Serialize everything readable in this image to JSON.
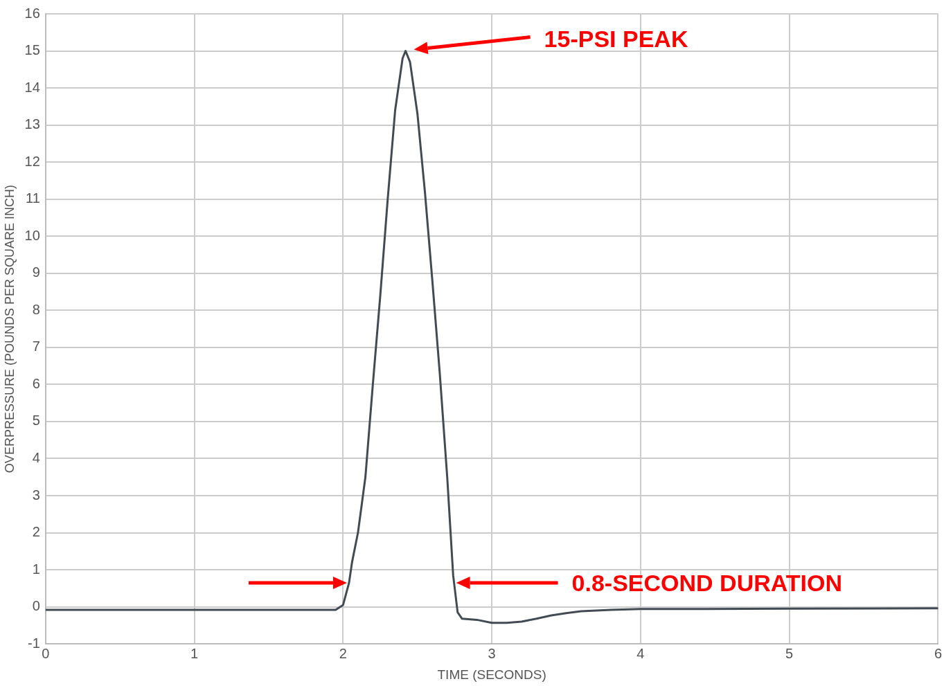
{
  "chart_data": {
    "type": "line",
    "xlabel": "TIME (SECONDS)",
    "ylabel": "OVERPRESSURE (POUNDS PER SQUARE INCH)",
    "xlim": [
      0,
      6
    ],
    "xticks": [
      0,
      1,
      2,
      3,
      4,
      5,
      6
    ],
    "ylim": [
      -1,
      16
    ],
    "yticks": [
      -1,
      0,
      1,
      2,
      3,
      4,
      5,
      6,
      7,
      8,
      9,
      10,
      11,
      12,
      13,
      14,
      15,
      16
    ],
    "grid": true,
    "legend": false,
    "marker": "none",
    "line_style": "solid",
    "series": [
      {
        "color": "#424b54",
        "x": [
          0,
          0.5,
          1,
          1.5,
          1.95,
          2.0,
          2.04,
          2.06,
          2.1,
          2.15,
          2.2,
          2.25,
          2.3,
          2.35,
          2.4,
          2.42,
          2.45,
          2.5,
          2.55,
          2.6,
          2.65,
          2.7,
          2.74,
          2.77,
          2.8,
          2.9,
          3.0,
          3.1,
          3.2,
          3.3,
          3.4,
          3.5,
          3.6,
          3.8,
          4.0,
          5.0,
          6.0
        ],
        "values": [
          -0.08,
          -0.08,
          -0.08,
          -0.08,
          -0.08,
          0.05,
          0.65,
          1.2,
          2,
          3.5,
          6,
          8.4,
          11,
          13.4,
          14.8,
          15,
          14.7,
          13.3,
          11.2,
          8.8,
          6.3,
          3.5,
          0.85,
          -0.15,
          -0.32,
          -0.35,
          -0.43,
          -0.43,
          -0.4,
          -0.32,
          -0.23,
          -0.17,
          -0.12,
          -0.08,
          -0.06,
          -0.05,
          -0.04
        ]
      }
    ],
    "annotations": [
      "15-PSI PEAK",
      "0.8-SECOND DURATION"
    ]
  }
}
